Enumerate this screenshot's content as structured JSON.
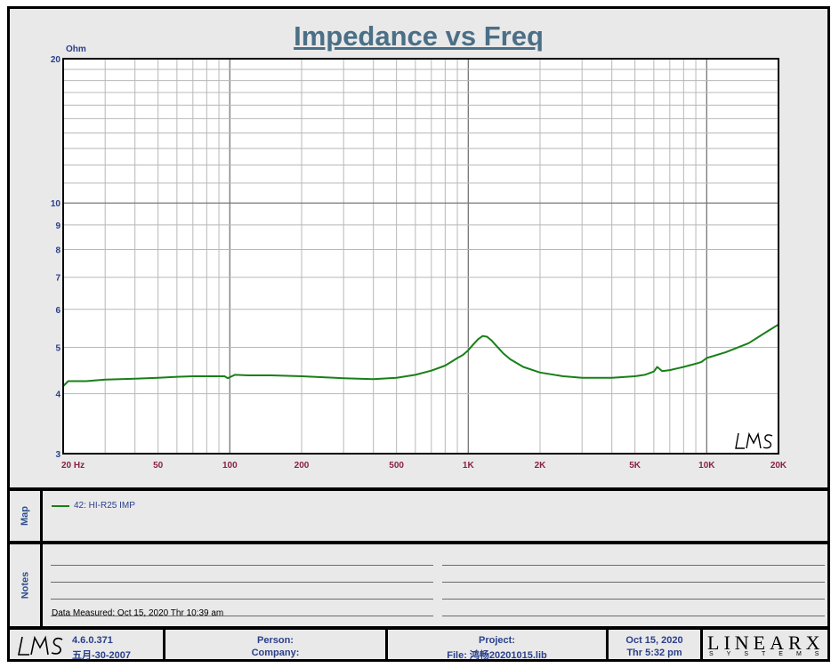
{
  "chart_data": {
    "type": "line",
    "title": "Impedance vs Freq",
    "ylabel": "Ohm",
    "xscale": "log",
    "yscale": "log",
    "xlim": [
      20,
      20000
    ],
    "ylim": [
      3,
      20
    ],
    "x_ticks": [
      {
        "v": 20,
        "label": "20  Hz"
      },
      {
        "v": 50,
        "label": "50"
      },
      {
        "v": 100,
        "label": "100"
      },
      {
        "v": 200,
        "label": "200"
      },
      {
        "v": 500,
        "label": "500"
      },
      {
        "v": 1000,
        "label": "1K"
      },
      {
        "v": 2000,
        "label": "2K"
      },
      {
        "v": 5000,
        "label": "5K"
      },
      {
        "v": 10000,
        "label": "10K"
      },
      {
        "v": 20000,
        "label": "20K"
      }
    ],
    "y_ticks": [
      {
        "v": 3,
        "label": "3"
      },
      {
        "v": 4,
        "label": "4"
      },
      {
        "v": 5,
        "label": "5"
      },
      {
        "v": 6,
        "label": "6"
      },
      {
        "v": 7,
        "label": "7"
      },
      {
        "v": 8,
        "label": "8"
      },
      {
        "v": 9,
        "label": "9"
      },
      {
        "v": 10,
        "label": "10"
      },
      {
        "v": 20,
        "label": "20"
      }
    ],
    "grid": true,
    "series": [
      {
        "name": "42: HI-R25  IMP",
        "color": "#178017",
        "x": [
          20,
          21,
          25,
          30,
          40,
          50,
          60,
          70,
          80,
          95,
          98,
          105,
          120,
          150,
          200,
          300,
          400,
          500,
          600,
          700,
          800,
          900,
          950,
          1000,
          1050,
          1100,
          1150,
          1200,
          1250,
          1300,
          1400,
          1500,
          1700,
          2000,
          2500,
          3000,
          4000,
          5000,
          5500,
          6000,
          6200,
          6500,
          7000,
          8000,
          9000,
          9500,
          10000,
          12000,
          15000,
          18000,
          20000
        ],
        "y": [
          4.15,
          4.25,
          4.25,
          4.28,
          4.3,
          4.32,
          4.34,
          4.35,
          4.35,
          4.35,
          4.31,
          4.38,
          4.37,
          4.37,
          4.35,
          4.31,
          4.29,
          4.32,
          4.38,
          4.47,
          4.58,
          4.75,
          4.82,
          4.93,
          5.07,
          5.2,
          5.28,
          5.26,
          5.17,
          5.06,
          4.86,
          4.72,
          4.55,
          4.43,
          4.35,
          4.32,
          4.32,
          4.35,
          4.38,
          4.45,
          4.55,
          4.46,
          4.48,
          4.55,
          4.62,
          4.66,
          4.75,
          4.88,
          5.1,
          5.4,
          5.58
        ]
      }
    ]
  },
  "map": {
    "label": "Map",
    "legend_label": "42: HI-R25  IMP"
  },
  "notes": {
    "label": "Notes",
    "measured": "Data Measured: Oct 15, 2020  Thr 10:39 am"
  },
  "footer": {
    "version": "4.6.0.371",
    "build_date": "五月-30-2007",
    "person_label": "Person:",
    "company_label": "Company:",
    "project_label": "Project:",
    "file_label": "File: 鸿畅20201015.lib",
    "date": "Oct 15, 2020",
    "time": "Thr  5:32 pm",
    "brand": "LINEARX",
    "brand_sub": "SYSTEMS"
  },
  "logo_text": "LMS"
}
